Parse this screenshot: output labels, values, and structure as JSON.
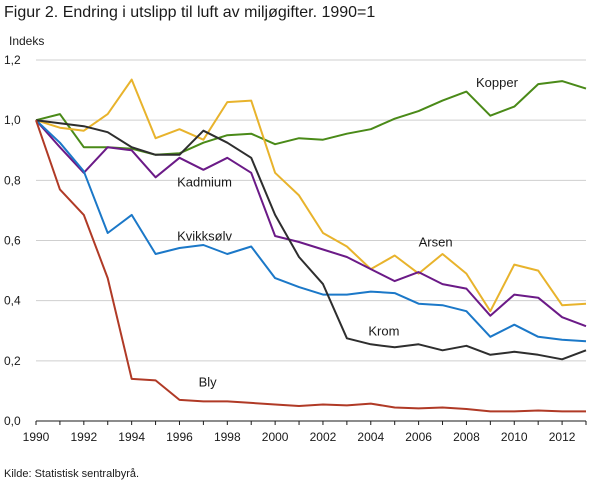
{
  "title": "Figur 2. Endring i utslipp til luft av miljøgifter. 1990=1",
  "source": "Kilde: Statistisk sentralbyrå.",
  "chart_data": {
    "type": "line",
    "title": "Figur 2. Endring i utslipp til luft av miljøgifter. 1990=1",
    "ylabel": "Indeks",
    "xlabel": "",
    "x": [
      1990,
      1991,
      1992,
      1993,
      1994,
      1995,
      1996,
      1997,
      1998,
      1999,
      2000,
      2001,
      2002,
      2003,
      2004,
      2005,
      2006,
      2007,
      2008,
      2009,
      2010,
      2011,
      2012,
      2013
    ],
    "xlim": [
      1990,
      2013
    ],
    "ylim": [
      0,
      1.2
    ],
    "xticks": [
      "1990",
      "1992",
      "1994",
      "1996",
      "1998",
      "2000",
      "2002",
      "2004",
      "2006",
      "2008",
      "2010",
      "2012"
    ],
    "yticks": [
      "0,0",
      "0,2",
      "0,4",
      "0,6",
      "0,8",
      "1,0",
      "1,2"
    ],
    "grid": "horizontal",
    "series": [
      {
        "name": "Kopper",
        "color": "#4a8a18",
        "values": [
          1.0,
          1.02,
          0.91,
          0.91,
          0.905,
          0.885,
          0.89,
          0.925,
          0.95,
          0.955,
          0.92,
          0.94,
          0.935,
          0.955,
          0.97,
          1.005,
          1.03,
          1.065,
          1.095,
          1.015,
          1.045,
          1.12,
          1.13,
          1.105
        ]
      },
      {
        "name": "Arsen",
        "color": "#e8b32c",
        "values": [
          1.0,
          0.975,
          0.965,
          1.02,
          1.135,
          0.94,
          0.97,
          0.935,
          1.06,
          1.065,
          0.825,
          0.75,
          0.625,
          0.58,
          0.505,
          0.55,
          0.49,
          0.555,
          0.49,
          0.365,
          0.52,
          0.5,
          0.385,
          0.39
        ]
      },
      {
        "name": "Kadmium",
        "color": "#6b1a87",
        "values": [
          1.0,
          0.91,
          0.825,
          0.91,
          0.9,
          0.81,
          0.875,
          0.835,
          0.875,
          0.825,
          0.615,
          0.595,
          0.57,
          0.545,
          0.505,
          0.465,
          0.495,
          0.455,
          0.44,
          0.35,
          0.42,
          0.41,
          0.345,
          0.315
        ]
      },
      {
        "name": "Kvikksølv",
        "color": "#1b78c8",
        "values": [
          1.0,
          0.925,
          0.83,
          0.625,
          0.685,
          0.555,
          0.575,
          0.585,
          0.555,
          0.58,
          0.475,
          0.445,
          0.42,
          0.42,
          0.43,
          0.425,
          0.39,
          0.385,
          0.365,
          0.28,
          0.32,
          0.28,
          0.27,
          0.265
        ]
      },
      {
        "name": "Krom",
        "color": "#2e2e2e",
        "values": [
          1.0,
          0.99,
          0.98,
          0.96,
          0.91,
          0.885,
          0.885,
          0.965,
          0.925,
          0.875,
          0.685,
          0.545,
          0.455,
          0.275,
          0.255,
          0.245,
          0.255,
          0.235,
          0.25,
          0.22,
          0.23,
          0.22,
          0.205,
          0.235
        ]
      },
      {
        "name": "Bly",
        "color": "#b03a26",
        "values": [
          1.0,
          0.77,
          0.685,
          0.475,
          0.14,
          0.135,
          0.07,
          0.065,
          0.065,
          0.06,
          0.055,
          0.05,
          0.055,
          0.052,
          0.058,
          0.045,
          0.042,
          0.045,
          0.04,
          0.032,
          0.032,
          0.035,
          0.032,
          0.032
        ]
      }
    ],
    "annotations": [
      {
        "text": "Kopper",
        "x": 2008.4,
        "y": 1.11
      },
      {
        "text": "Arsen",
        "x": 2006.0,
        "y": 0.58
      },
      {
        "text": "Kadmium",
        "x": 1995.9,
        "y": 0.78
      },
      {
        "text": "Kvikksølv",
        "x": 1995.9,
        "y": 0.6
      },
      {
        "text": "Krom",
        "x": 2003.9,
        "y": 0.285
      },
      {
        "text": "Bly",
        "x": 1996.8,
        "y": 0.115
      }
    ]
  }
}
